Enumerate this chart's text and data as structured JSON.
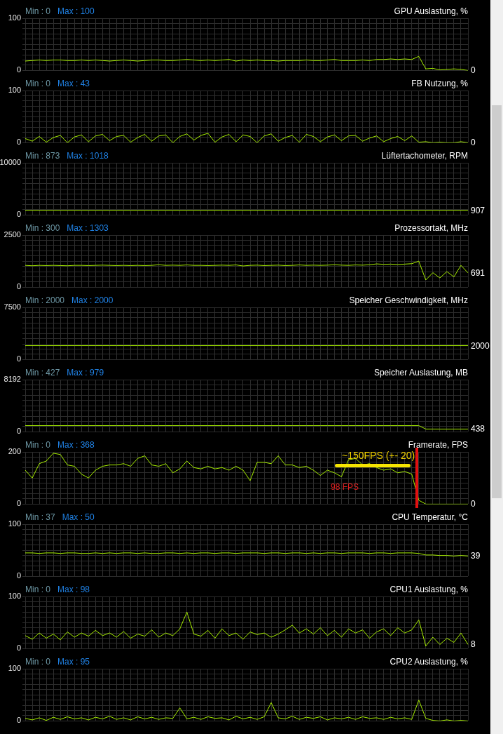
{
  "chart_data": [
    {
      "type": "line",
      "title": "GPU Auslastung, %",
      "categories": [
        null,
        null,
        null,
        null,
        null,
        null,
        null,
        null,
        null,
        null,
        null,
        null,
        null,
        null,
        null,
        null,
        null,
        null,
        null,
        null,
        null,
        null,
        null,
        null,
        null,
        null,
        null,
        null,
        null,
        null,
        null,
        null,
        null,
        null,
        null,
        null,
        null,
        null,
        null,
        null,
        null,
        null,
        null,
        null,
        null,
        null,
        null,
        null,
        null,
        null,
        null,
        null,
        null,
        null,
        null,
        null,
        null,
        null,
        null,
        null,
        null,
        null,
        null,
        null
      ],
      "series": [
        {
          "color": "#a8f000",
          "values": [
            18,
            19,
            20,
            19,
            20,
            20,
            19,
            19,
            20,
            19,
            20,
            19,
            18,
            19,
            20,
            19,
            18,
            19,
            20,
            20,
            19,
            19,
            20,
            21,
            20,
            19,
            20,
            19,
            20,
            21,
            18,
            20,
            19,
            20,
            19,
            19,
            18,
            19,
            19,
            19,
            20,
            19,
            19,
            20,
            21,
            19,
            19,
            19,
            20,
            19,
            21,
            21,
            22,
            21,
            22,
            21,
            27,
            3,
            4,
            1,
            2,
            3,
            2,
            0
          ]
        }
      ],
      "ylim": [
        0,
        100
      ],
      "yticks": [
        0,
        {
          "value": 10,
          "label": null
        },
        {
          "value": 20,
          "label": null
        },
        {
          "value": 30,
          "label": null
        },
        {
          "value": 40,
          "label": null
        },
        {
          "value": 50,
          "label": null
        },
        {
          "value": 60,
          "label": null
        },
        {
          "value": 70,
          "label": null
        },
        {
          "value": 80,
          "label": null
        },
        {
          "value": 90,
          "label": null
        },
        100
      ],
      "grid": true,
      "marker": "none",
      "annotations": [
        "Min : 0",
        "Max : 100",
        "0"
      ]
    },
    {
      "type": "line",
      "title": "FB Nutzung, %",
      "categories": [
        null,
        null,
        null,
        null,
        null,
        null,
        null,
        null,
        null,
        null,
        null,
        null,
        null,
        null,
        null,
        null,
        null,
        null,
        null,
        null,
        null,
        null,
        null,
        null,
        null,
        null,
        null,
        null,
        null,
        null,
        null,
        null,
        null,
        null,
        null,
        null,
        null,
        null,
        null,
        null,
        null,
        null,
        null,
        null,
        null,
        null,
        null,
        null,
        null,
        null,
        null,
        null,
        null,
        null,
        null,
        null,
        null,
        null,
        null,
        null,
        null,
        null,
        null,
        null
      ],
      "series": [
        {
          "color": "#a8f000",
          "values": [
            8,
            3,
            12,
            1,
            10,
            14,
            0,
            11,
            15,
            2,
            13,
            16,
            4,
            12,
            14,
            1,
            10,
            16,
            3,
            13,
            15,
            0,
            12,
            17,
            5,
            14,
            18,
            1,
            11,
            16,
            2,
            15,
            12,
            0,
            13,
            17,
            3,
            10,
            14,
            1,
            16,
            12,
            2,
            11,
            15,
            4,
            13,
            14,
            3,
            9,
            13,
            2,
            8,
            12,
            4,
            13,
            1,
            2,
            0,
            1,
            0,
            0,
            2,
            0
          ]
        }
      ],
      "ylim": [
        0,
        100
      ],
      "yticks": [
        0,
        {
          "value": 10,
          "label": null
        },
        {
          "value": 20,
          "label": null
        },
        {
          "value": 30,
          "label": null
        },
        {
          "value": 40,
          "label": null
        },
        {
          "value": 50,
          "label": null
        },
        {
          "value": 60,
          "label": null
        },
        {
          "value": 70,
          "label": null
        },
        {
          "value": 80,
          "label": null
        },
        {
          "value": 90,
          "label": null
        },
        100
      ],
      "grid": true,
      "marker": "none",
      "annotations": [
        "Min : 0",
        "Max : 43",
        "0"
      ]
    },
    {
      "type": "line",
      "title": "Lüftertachometer, RPM",
      "categories": [
        null,
        null,
        null,
        null,
        null,
        null,
        null,
        null,
        null,
        null,
        null,
        null,
        null,
        null,
        null,
        null,
        null,
        null,
        null,
        null,
        null,
        null,
        null,
        null,
        null,
        null,
        null,
        null,
        null,
        null,
        null,
        null,
        null,
        null,
        null,
        null,
        null,
        null,
        null,
        null,
        null,
        null,
        null,
        null,
        null,
        null,
        null,
        null,
        null,
        null,
        null,
        null,
        null,
        null,
        null,
        null,
        null,
        null,
        null,
        null,
        null,
        null,
        null,
        null
      ],
      "series": [
        {
          "color": "#a8f000",
          "values": [
            907,
            907,
            907,
            907,
            907,
            907,
            907,
            907,
            907,
            907,
            907,
            907,
            907,
            907,
            907,
            907,
            907,
            907,
            907,
            907,
            907,
            907,
            907,
            907,
            907,
            907,
            907,
            907,
            907,
            907,
            907,
            907,
            907,
            907,
            907,
            907,
            907,
            907,
            907,
            907,
            907,
            907,
            907,
            907,
            907,
            907,
            907,
            907,
            907,
            907,
            907,
            907,
            907,
            907,
            907,
            907,
            907,
            907,
            907,
            907,
            907,
            907,
            907,
            907
          ]
        }
      ],
      "ylim": [
        0,
        10000
      ],
      "yticks": [
        0,
        {
          "value": 1000,
          "label": null
        },
        {
          "value": 2000,
          "label": null
        },
        {
          "value": 3000,
          "label": null
        },
        {
          "value": 4000,
          "label": null
        },
        {
          "value": 5000,
          "label": null
        },
        {
          "value": 6000,
          "label": null
        },
        {
          "value": 7000,
          "label": null
        },
        {
          "value": 8000,
          "label": null
        },
        {
          "value": 9000,
          "label": null
        },
        10000
      ],
      "grid": true,
      "marker": "none",
      "annotations": [
        "Min : 873",
        "Max : 1018",
        "907"
      ]
    },
    {
      "type": "line",
      "title": "Prozessortakt, MHz",
      "categories": [
        null,
        null,
        null,
        null,
        null,
        null,
        null,
        null,
        null,
        null,
        null,
        null,
        null,
        null,
        null,
        null,
        null,
        null,
        null,
        null,
        null,
        null,
        null,
        null,
        null,
        null,
        null,
        null,
        null,
        null,
        null,
        null,
        null,
        null,
        null,
        null,
        null,
        null,
        null,
        null,
        null,
        null,
        null,
        null,
        null,
        null,
        null,
        null,
        null,
        null,
        null,
        null,
        null,
        null,
        null,
        null,
        null,
        null,
        null,
        null,
        null,
        null,
        null,
        null
      ],
      "series": [
        {
          "color": "#a8f000",
          "values": [
            1050,
            1030,
            1050,
            1040,
            1050,
            1040,
            1030,
            1050,
            1050,
            1040,
            1050,
            1060,
            1050,
            1040,
            1050,
            1040,
            1050,
            1040,
            1050,
            1080,
            1050,
            1060,
            1050,
            1070,
            1050,
            1050,
            1040,
            1050,
            1060,
            1050,
            1070,
            1020,
            1050,
            1060,
            1040,
            1050,
            1060,
            1040,
            1050,
            1070,
            1050,
            1060,
            1050,
            1060,
            1080,
            1060,
            1050,
            1070,
            1060,
            1080,
            1120,
            1100,
            1110,
            1090,
            1110,
            1130,
            1250,
            350,
            700,
            450,
            750,
            500,
            1050,
            691
          ]
        }
      ],
      "ylim": [
        0,
        2500
      ],
      "yticks": [
        0,
        {
          "value": 250,
          "label": null
        },
        {
          "value": 500,
          "label": null
        },
        {
          "value": 750,
          "label": null
        },
        {
          "value": 1000,
          "label": null
        },
        {
          "value": 1250,
          "label": null
        },
        {
          "value": 1500,
          "label": null
        },
        {
          "value": 1750,
          "label": null
        },
        {
          "value": 2000,
          "label": null
        },
        {
          "value": 2250,
          "label": null
        },
        2500
      ],
      "grid": true,
      "marker": "none",
      "annotations": [
        "Min : 300",
        "Max : 1303",
        "691"
      ]
    },
    {
      "type": "line",
      "title": "Speicher Geschwindigkeit, MHz",
      "categories": [
        null,
        null,
        null,
        null,
        null,
        null,
        null,
        null,
        null,
        null,
        null,
        null,
        null,
        null,
        null,
        null,
        null,
        null,
        null,
        null,
        null,
        null,
        null,
        null,
        null,
        null,
        null,
        null,
        null,
        null,
        null,
        null,
        null,
        null,
        null,
        null,
        null,
        null,
        null,
        null,
        null,
        null,
        null,
        null,
        null,
        null,
        null,
        null,
        null,
        null,
        null,
        null,
        null,
        null,
        null,
        null,
        null,
        null,
        null,
        null,
        null,
        null,
        null,
        null
      ],
      "series": [
        {
          "color": "#a8f000",
          "values": [
            2000,
            2000,
            2000,
            2000,
            2000,
            2000,
            2000,
            2000,
            2000,
            2000,
            2000,
            2000,
            2000,
            2000,
            2000,
            2000,
            2000,
            2000,
            2000,
            2000,
            2000,
            2000,
            2000,
            2000,
            2000,
            2000,
            2000,
            2000,
            2000,
            2000,
            2000,
            2000,
            2000,
            2000,
            2000,
            2000,
            2000,
            2000,
            2000,
            2000,
            2000,
            2000,
            2000,
            2000,
            2000,
            2000,
            2000,
            2000,
            2000,
            2000,
            2000,
            2000,
            2000,
            2000,
            2000,
            2000,
            2000,
            2000,
            2000,
            2000,
            2000,
            2000,
            2000,
            2000
          ]
        }
      ],
      "ylim": [
        0,
        7500
      ],
      "yticks": [
        0,
        {
          "value": 750,
          "label": null
        },
        {
          "value": 1500,
          "label": null
        },
        {
          "value": 2250,
          "label": null
        },
        {
          "value": 3000,
          "label": null
        },
        {
          "value": 3750,
          "label": null
        },
        {
          "value": 4500,
          "label": null
        },
        {
          "value": 5250,
          "label": null
        },
        {
          "value": 6000,
          "label": null
        },
        {
          "value": 6750,
          "label": null
        },
        7500
      ],
      "grid": true,
      "marker": "none",
      "annotations": [
        "Min : 2000",
        "Max : 2000",
        "2000"
      ]
    },
    {
      "type": "line",
      "title": "Speicher Auslastung, MB",
      "categories": [
        null,
        null,
        null,
        null,
        null,
        null,
        null,
        null,
        null,
        null,
        null,
        null,
        null,
        null,
        null,
        null,
        null,
        null,
        null,
        null,
        null,
        null,
        null,
        null,
        null,
        null,
        null,
        null,
        null,
        null,
        null,
        null,
        null,
        null,
        null,
        null,
        null,
        null,
        null,
        null,
        null,
        null,
        null,
        null,
        null,
        null,
        null,
        null,
        null,
        null,
        null,
        null,
        null,
        null,
        null,
        null,
        null,
        null,
        null,
        null,
        null,
        null,
        null,
        null
      ],
      "series": [
        {
          "color": "#a8f000",
          "values": [
            975,
            975,
            975,
            975,
            975,
            975,
            975,
            975,
            975,
            975,
            975,
            975,
            975,
            975,
            975,
            975,
            975,
            975,
            975,
            975,
            975,
            975,
            975,
            975,
            975,
            975,
            975,
            975,
            975,
            975,
            975,
            975,
            975,
            975,
            975,
            975,
            975,
            975,
            975,
            975,
            975,
            975,
            975,
            975,
            975,
            975,
            975,
            975,
            975,
            975,
            975,
            975,
            975,
            975,
            975,
            975,
            975,
            440,
            440,
            438,
            438,
            438,
            438,
            438
          ]
        }
      ],
      "ylim": [
        0,
        8192
      ],
      "yticks": [
        0,
        {
          "value": 819.2,
          "label": null
        },
        {
          "value": 1638.4,
          "label": null
        },
        {
          "value": 2457.6,
          "label": null
        },
        {
          "value": 3276.8,
          "label": null
        },
        {
          "value": 4096,
          "label": null
        },
        {
          "value": 4915.2,
          "label": null
        },
        {
          "value": 5734.4,
          "label": null
        },
        {
          "value": 6553.6,
          "label": null
        },
        {
          "value": 7372.8,
          "label": null
        },
        8192
      ],
      "grid": true,
      "marker": "none",
      "annotations": [
        "Min : 427",
        "Max : 979",
        "438"
      ]
    },
    {
      "type": "line",
      "title": "Framerate, FPS",
      "categories": [
        null,
        null,
        null,
        null,
        null,
        null,
        null,
        null,
        null,
        null,
        null,
        null,
        null,
        null,
        null,
        null,
        null,
        null,
        null,
        null,
        null,
        null,
        null,
        null,
        null,
        null,
        null,
        null,
        null,
        null,
        null,
        null,
        null,
        null,
        null,
        null,
        null,
        null,
        null,
        null,
        null,
        null,
        null,
        null,
        null,
        null,
        null,
        null,
        null,
        null,
        null,
        null,
        null,
        null,
        null,
        null,
        null,
        null,
        null,
        null,
        null,
        null,
        null,
        null
      ],
      "series": [
        {
          "color": "#a8f000",
          "values": [
            130,
            100,
            155,
            165,
            195,
            190,
            150,
            145,
            115,
            100,
            130,
            145,
            150,
            150,
            155,
            145,
            175,
            185,
            150,
            145,
            155,
            120,
            135,
            165,
            140,
            135,
            145,
            135,
            140,
            130,
            145,
            130,
            90,
            160,
            160,
            155,
            185,
            150,
            150,
            140,
            145,
            130,
            110,
            130,
            120,
            105,
            170,
            175,
            150,
            155,
            140,
            130,
            135,
            120,
            125,
            115,
            15,
            0,
            0,
            0,
            0,
            0,
            0,
            0
          ]
        }
      ],
      "ylim": [
        0,
        200
      ],
      "yticks": [
        0,
        {
          "value": 20,
          "label": null
        },
        {
          "value": 40,
          "label": null
        },
        {
          "value": 60,
          "label": null
        },
        {
          "value": 80,
          "label": null
        },
        {
          "value": 100,
          "label": null
        },
        {
          "value": 120,
          "label": null
        },
        {
          "value": 140,
          "label": null
        },
        {
          "value": 160,
          "label": null
        },
        {
          "value": 180,
          "label": null
        },
        200
      ],
      "grid": true,
      "marker": "none",
      "annotations": [
        "Min : 0",
        "Max : 368",
        "0",
        {
          "text": "~150FPS (+- 20)",
          "y": 150
        },
        "98 FPS"
      ]
    },
    {
      "type": "line",
      "title": "CPU Temperatur, °C",
      "categories": [
        null,
        null,
        null,
        null,
        null,
        null,
        null,
        null,
        null,
        null,
        null,
        null,
        null,
        null,
        null,
        null,
        null,
        null,
        null,
        null,
        null,
        null,
        null,
        null,
        null,
        null,
        null,
        null,
        null,
        null,
        null,
        null,
        null,
        null,
        null,
        null,
        null,
        null,
        null,
        null,
        null,
        null,
        null,
        null,
        null,
        null,
        null,
        null,
        null,
        null,
        null,
        null,
        null,
        null,
        null,
        null,
        null,
        null,
        null,
        null,
        null,
        null,
        null,
        null
      ],
      "series": [
        {
          "color": "#a8f000",
          "values": [
            45,
            45,
            44,
            45,
            45,
            44,
            45,
            45,
            44,
            44,
            45,
            44,
            45,
            44,
            45,
            45,
            44,
            45,
            44,
            44,
            45,
            45,
            44,
            45,
            44,
            45,
            45,
            44,
            45,
            45,
            44,
            45,
            45,
            45,
            44,
            45,
            45,
            44,
            45,
            45,
            44,
            45,
            44,
            45,
            45,
            44,
            45,
            45,
            45,
            44,
            45,
            45,
            44,
            45,
            45,
            45,
            44,
            41,
            41,
            40,
            40,
            39,
            40,
            39
          ]
        }
      ],
      "ylim": [
        0,
        100
      ],
      "yticks": [
        0,
        {
          "value": 10,
          "label": null
        },
        {
          "value": 20,
          "label": null
        },
        {
          "value": 30,
          "label": null
        },
        {
          "value": 40,
          "label": null
        },
        {
          "value": 50,
          "label": null
        },
        {
          "value": 60,
          "label": null
        },
        {
          "value": 70,
          "label": null
        },
        {
          "value": 80,
          "label": null
        },
        {
          "value": 90,
          "label": null
        },
        100
      ],
      "grid": true,
      "marker": "none",
      "annotations": [
        "Min : 37",
        "Max : 50",
        "39"
      ]
    },
    {
      "type": "line",
      "title": "CPU1 Auslastung, %",
      "categories": [
        null,
        null,
        null,
        null,
        null,
        null,
        null,
        null,
        null,
        null,
        null,
        null,
        null,
        null,
        null,
        null,
        null,
        null,
        null,
        null,
        null,
        null,
        null,
        null,
        null,
        null,
        null,
        null,
        null,
        null,
        null,
        null,
        null,
        null,
        null,
        null,
        null,
        null,
        null,
        null,
        null,
        null,
        null,
        null,
        null,
        null,
        null,
        null,
        null,
        null,
        null,
        null,
        null,
        null,
        null,
        null,
        null,
        null,
        null,
        null,
        null,
        null,
        null,
        null
      ],
      "series": [
        {
          "color": "#a8f000",
          "values": [
            25,
            18,
            30,
            20,
            28,
            17,
            32,
            22,
            30,
            24,
            35,
            25,
            30,
            22,
            33,
            20,
            28,
            24,
            36,
            22,
            30,
            25,
            38,
            70,
            28,
            24,
            35,
            20,
            38,
            25,
            30,
            18,
            32,
            27,
            30,
            22,
            28,
            36,
            45,
            30,
            38,
            28,
            40,
            25,
            35,
            22,
            38,
            30,
            36,
            20,
            32,
            38,
            25,
            40,
            30,
            36,
            55,
            5,
            22,
            8,
            20,
            12,
            30,
            8
          ]
        }
      ],
      "ylim": [
        0,
        100
      ],
      "yticks": [
        0,
        {
          "value": 10,
          "label": null
        },
        {
          "value": 20,
          "label": null
        },
        {
          "value": 30,
          "label": null
        },
        {
          "value": 40,
          "label": null
        },
        {
          "value": 50,
          "label": null
        },
        {
          "value": 60,
          "label": null
        },
        {
          "value": 70,
          "label": null
        },
        {
          "value": 80,
          "label": null
        },
        {
          "value": 90,
          "label": null
        },
        100
      ],
      "grid": true,
      "marker": "none",
      "annotations": [
        "Min : 0",
        "Max : 98",
        "8"
      ]
    },
    {
      "type": "line",
      "title": "CPU2 Auslastung, %",
      "categories": [
        null,
        null,
        null,
        null,
        null,
        null,
        null,
        null,
        null,
        null,
        null,
        null,
        null,
        null,
        null,
        null,
        null,
        null,
        null,
        null,
        null,
        null,
        null,
        null,
        null,
        null,
        null,
        null,
        null,
        null,
        null,
        null,
        null,
        null,
        null,
        null,
        null,
        null,
        null,
        null,
        null,
        null,
        null,
        null,
        null,
        null,
        null,
        null,
        null,
        null,
        null,
        null,
        null,
        null,
        null,
        null,
        null,
        null,
        null,
        null,
        null,
        null,
        null,
        null
      ],
      "series": [
        {
          "color": "#a8f000",
          "values": [
            5,
            2,
            6,
            1,
            7,
            3,
            8,
            4,
            6,
            2,
            7,
            4,
            9,
            3,
            6,
            2,
            8,
            4,
            7,
            3,
            6,
            5,
            25,
            4,
            7,
            3,
            8,
            5,
            6,
            2,
            9,
            4,
            7,
            3,
            8,
            35,
            6,
            4,
            9,
            3,
            7,
            5,
            8,
            2,
            6,
            4,
            7,
            3,
            8,
            5,
            6,
            3,
            7,
            4,
            6,
            3,
            40,
            5,
            1,
            0,
            2,
            0,
            1,
            0
          ]
        }
      ],
      "ylim": [
        0,
        100
      ],
      "yticks": [
        0,
        {
          "value": 10,
          "label": null
        },
        {
          "value": 20,
          "label": null
        },
        {
          "value": 30,
          "label": null
        },
        {
          "value": 40,
          "label": null
        },
        {
          "value": 50,
          "label": null
        },
        {
          "value": 60,
          "label": null
        },
        {
          "value": 70,
          "label": null
        },
        {
          "value": 80,
          "label": null
        },
        {
          "value": 90,
          "label": null
        },
        100
      ],
      "grid": true,
      "marker": "none",
      "annotations": [
        "Min : 0",
        "Max : 95"
      ]
    }
  ]
}
